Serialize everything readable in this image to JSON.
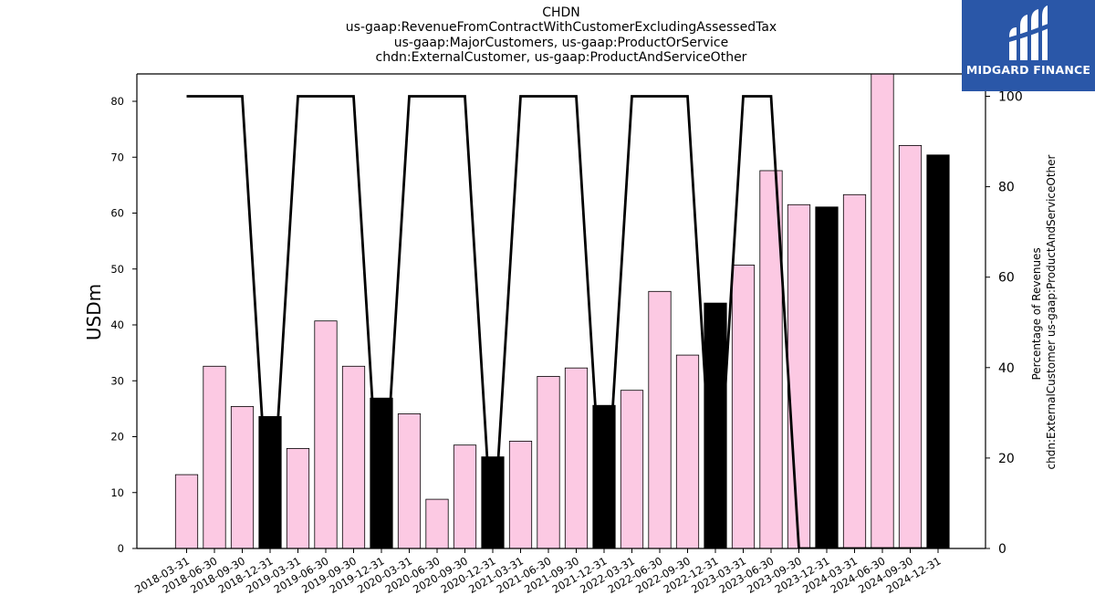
{
  "title_lines": [
    "CHDN",
    "us-gaap:RevenueFromContractWithCustomerExcludingAssessedTax",
    "us-gaap:MajorCustomers, us-gaap:ProductOrService",
    "chdn:ExternalCustomer, us-gaap:ProductAndServiceOther"
  ],
  "logo": {
    "text": "MIDGARD FINANCE",
    "background": "#2a57a8",
    "icon": "midgard-logo-icon"
  },
  "chart_data": {
    "type": "bar",
    "categories": [
      "2018-03-31",
      "2018-06-30",
      "2018-09-30",
      "2018-12-31",
      "2019-03-31",
      "2019-06-30",
      "2019-09-30",
      "2019-12-31",
      "2020-03-31",
      "2020-06-30",
      "2020-09-30",
      "2020-12-31",
      "2021-03-31",
      "2021-06-30",
      "2021-09-30",
      "2021-12-31",
      "2022-03-31",
      "2022-06-30",
      "2022-09-30",
      "2022-12-31",
      "2023-03-31",
      "2023-06-30",
      "2023-09-30",
      "2023-12-31",
      "2024-03-31",
      "2024-06-30",
      "2024-09-30",
      "2024-12-31"
    ],
    "values": [
      13.2,
      32.6,
      25.4,
      23.6,
      17.9,
      40.7,
      32.6,
      26.9,
      24.1,
      8.8,
      18.5,
      16.4,
      19.2,
      30.8,
      32.3,
      25.6,
      28.3,
      46.0,
      34.6,
      43.9,
      50.7,
      67.6,
      61.5,
      61.1,
      63.3,
      85.5,
      72.1,
      70.4
    ],
    "bar_colors": [
      "#fcc9e3",
      "#fcc9e3",
      "#fcc9e3",
      "#000000",
      "#fcc9e3",
      "#fcc9e3",
      "#fcc9e3",
      "#000000",
      "#fcc9e3",
      "#fcc9e3",
      "#fcc9e3",
      "#000000",
      "#fcc9e3",
      "#fcc9e3",
      "#fcc9e3",
      "#000000",
      "#fcc9e3",
      "#fcc9e3",
      "#fcc9e3",
      "#000000",
      "#fcc9e3",
      "#fcc9e3",
      "#fcc9e3",
      "#000000",
      "#fcc9e3",
      "#fcc9e3",
      "#fcc9e3",
      "#000000"
    ],
    "line_values": [
      100,
      100,
      100,
      0,
      100,
      100,
      100,
      0,
      100,
      100,
      100,
      0,
      100,
      100,
      100,
      0,
      100,
      100,
      100,
      0,
      100,
      100,
      0,
      0,
      0,
      0,
      0,
      0
    ],
    "ylabel": "USDm",
    "y2label_lines": [
      "Percentage of Revenues",
      "chdn:ExternalCustomer us-gaap:ProductAndServiceOther"
    ],
    "ylim": [
      0,
      85
    ],
    "y_ticks": [
      0,
      10,
      20,
      30,
      40,
      50,
      60,
      70,
      80
    ],
    "y2lim": [
      0,
      100
    ],
    "y2_ticks": [
      0,
      20,
      40,
      60,
      80,
      100
    ],
    "grid": false
  }
}
